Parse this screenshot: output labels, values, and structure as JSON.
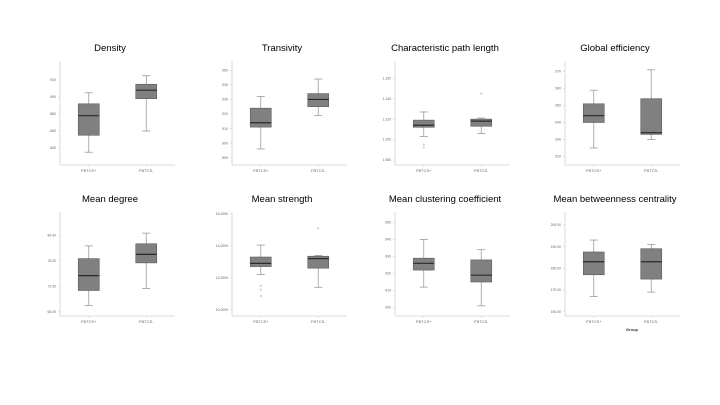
{
  "chart_data": [
    {
      "type": "box",
      "title": "Density",
      "categories": [
        "FBTCS+",
        "FBTCS-"
      ],
      "ylim": [
        0.82,
        0.94
      ],
      "ticks": [
        ".840",
        ".860",
        ".880",
        ".900",
        ".920"
      ],
      "ticks_values": [
        0.84,
        0.86,
        0.88,
        0.9,
        0.92
      ],
      "boxes": [
        {
          "min": 0.835,
          "q1": 0.855,
          "median": 0.878,
          "q3": 0.892,
          "max": 0.905,
          "outliers": []
        },
        {
          "min": 0.86,
          "q1": 0.898,
          "median": 0.908,
          "q3": 0.915,
          "max": 0.925,
          "outliers": []
        }
      ]
    },
    {
      "type": "box",
      "title": "Transivity",
      "categories": [
        "FBTCS+",
        "FBTCS-"
      ],
      "ylim": [
        0.885,
        0.955
      ],
      "ticks": [
        ".890",
        ".900",
        ".910",
        ".920",
        ".930",
        ".940",
        ".950"
      ],
      "ticks_values": [
        0.89,
        0.9,
        0.91,
        0.92,
        0.93,
        0.94,
        0.95
      ],
      "boxes": [
        {
          "min": 0.896,
          "q1": 0.911,
          "median": 0.914,
          "q3": 0.924,
          "max": 0.932,
          "outliers": []
        },
        {
          "min": 0.919,
          "q1": 0.925,
          "median": 0.93,
          "q3": 0.934,
          "max": 0.944,
          "outliers": []
        }
      ]
    },
    {
      "type": "box",
      "title": "Characteristic path length",
      "categories": [
        "FBTCS+",
        "FBTCS-"
      ],
      "ylim": [
        1.075,
        1.175
      ],
      "ticks": [
        "1.080",
        "1.100",
        "1.120",
        "1.140",
        "1.160"
      ],
      "ticks_values": [
        1.08,
        1.1,
        1.12,
        1.14,
        1.16
      ],
      "boxes": [
        {
          "min": 1.103,
          "q1": 1.112,
          "median": 1.114,
          "q3": 1.119,
          "max": 1.127,
          "outliers": [
            1.095,
            1.092
          ]
        },
        {
          "min": 1.106,
          "q1": 1.113,
          "median": 1.118,
          "q3": 1.12,
          "max": 1.121,
          "outliers": [
            1.145
          ]
        }
      ]
    },
    {
      "type": "box",
      "title": "Global efficiency",
      "categories": [
        "FBTCS+",
        "FBTCS-"
      ],
      "ylim": [
        0.915,
        0.975
      ],
      "ticks": [
        ".920",
        ".930",
        ".940",
        ".950",
        ".960",
        ".970"
      ],
      "ticks_values": [
        0.92,
        0.93,
        0.94,
        0.95,
        0.96,
        0.97
      ],
      "boxes": [
        {
          "min": 0.925,
          "q1": 0.94,
          "median": 0.944,
          "q3": 0.951,
          "max": 0.959,
          "outliers": []
        },
        {
          "min": 0.93,
          "q1": 0.933,
          "median": 0.934,
          "q3": 0.954,
          "max": 0.971,
          "outliers": []
        }
      ]
    },
    {
      "type": "box",
      "title": "Mean degree",
      "categories": [
        "FBTCS+",
        "FBTCS-"
      ],
      "ylim": [
        65,
        89
      ],
      "ticks": [
        "66.00",
        "72.00",
        "78.00",
        "84.00"
      ],
      "ticks_values": [
        66,
        72,
        78,
        84
      ],
      "boxes": [
        {
          "min": 67.5,
          "q1": 71,
          "median": 74.5,
          "q3": 78.5,
          "max": 81.5,
          "outliers": []
        },
        {
          "min": 71.5,
          "q1": 77.5,
          "median": 79.5,
          "q3": 82,
          "max": 84.5,
          "outliers": []
        }
      ]
    },
    {
      "type": "box",
      "title": "Mean strength",
      "categories": [
        "FBTCS+",
        "FBTCS-"
      ],
      "ylim": [
        9.6,
        16
      ],
      "ticks": [
        "10.0000",
        "12.0000",
        "14.0000",
        "16.0000"
      ],
      "ticks_values": [
        10,
        12,
        14,
        16
      ],
      "boxes": [
        {
          "min": 12.2,
          "q1": 12.7,
          "median": 12.9,
          "q3": 13.3,
          "max": 14.05,
          "outliers": [
            11.5,
            11.25,
            10.85
          ]
        },
        {
          "min": 11.4,
          "q1": 12.6,
          "median": 13.2,
          "q3": 13.35,
          "max": 13.4,
          "outliers": [
            15.1
          ]
        }
      ]
    },
    {
      "type": "box",
      "title": "Mean clustering coefficient",
      "categories": [
        "FBTCS+",
        "FBTCS-"
      ],
      "ylim": [
        0.895,
        0.955
      ],
      "ticks": [
        ".900",
        ".910",
        ".920",
        ".930",
        ".940",
        ".950"
      ],
      "ticks_values": [
        0.9,
        0.91,
        0.92,
        0.93,
        0.94,
        0.95
      ],
      "boxes": [
        {
          "min": 0.912,
          "q1": 0.922,
          "median": 0.926,
          "q3": 0.929,
          "max": 0.94,
          "outliers": []
        },
        {
          "min": 0.901,
          "q1": 0.915,
          "median": 0.919,
          "q3": 0.928,
          "max": 0.934,
          "outliers": []
        }
      ]
    },
    {
      "type": "box",
      "title": "Mean betweenness centrality",
      "categories": [
        "FBTCS+",
        "FBTCS-"
      ],
      "ylim": [
        158,
        205
      ],
      "ticks": [
        "160.00",
        "170.00",
        "180.00",
        "190.00",
        "200.00"
      ],
      "ticks_values": [
        160,
        170,
        180,
        190,
        200
      ],
      "boxes": [
        {
          "min": 167,
          "q1": 177,
          "median": 183,
          "q3": 187.5,
          "max": 193,
          "outliers": []
        },
        {
          "min": 169,
          "q1": 175,
          "median": 183,
          "q3": 189,
          "max": 191,
          "outliers": []
        }
      ],
      "xlabel": "Group"
    }
  ],
  "style": {
    "box_fill": "#808080",
    "box_stroke": "#5c5c5c",
    "median_color": "#2a2a2a",
    "whisker_color": "#9a9a9a",
    "axis_color": "#cfcfcf",
    "tick_text_color": "#666666"
  }
}
